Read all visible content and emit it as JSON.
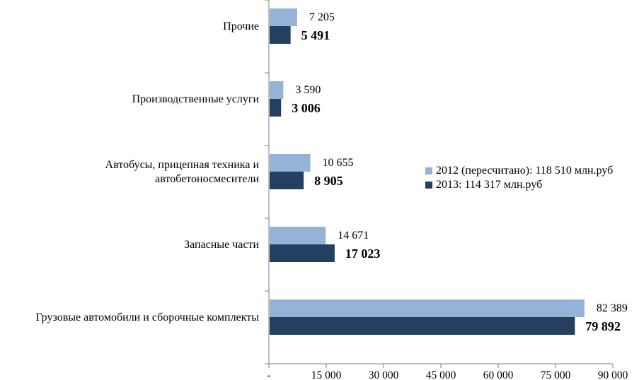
{
  "chart_data": {
    "type": "bar",
    "orientation": "horizontal",
    "categories": [
      [
        "Грузовые автомобили и сборочные комплекты"
      ],
      [
        "Запасные части"
      ],
      [
        "Автобусы, прицепная техника и",
        "автобетоносмесители"
      ],
      [
        "Производственные услуги"
      ],
      [
        "Прочие"
      ]
    ],
    "series": [
      {
        "name": "2012 (пересчитано): 118 510 млн.руб",
        "color": "#95b3d7",
        "values": [
          82389,
          14671,
          10655,
          3590,
          7205
        ],
        "labels": [
          "82 389",
          "14 671",
          "10 655",
          "3 590",
          "7 205"
        ]
      },
      {
        "name": "2013: 114 317 млн.руб",
        "color": "#243f60",
        "values": [
          79892,
          17023,
          8905,
          3006,
          5491
        ],
        "labels": [
          "79 892",
          "17 023",
          "8 905",
          "3 006",
          "5 491"
        ]
      }
    ],
    "xlim": [
      0,
      90000
    ],
    "xticks": [
      0,
      15000,
      30000,
      45000,
      60000,
      75000,
      90000
    ],
    "xtick_labels": [
      "-",
      "15 000",
      "30 000",
      "45 000",
      "60 000",
      "75 000",
      "90 000"
    ],
    "legend_position": "center-right",
    "grid": false
  }
}
